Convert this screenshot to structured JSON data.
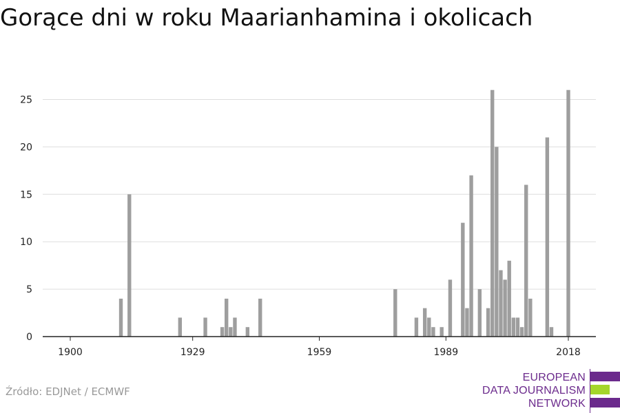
{
  "title": "Gorące dni w roku Maarianhamina i okolicach",
  "source": "Źródło: EDJNet / ECMWF",
  "logo": {
    "lines": [
      "EUROPEAN",
      "DATA JOURNALISM",
      "NETWORK"
    ],
    "colors": [
      "#6b2a8c",
      "#a4d62b",
      "#6b2a8c"
    ]
  },
  "chart_data": {
    "type": "bar",
    "title": "Gorące dni w roku Maarianhamina i okolicach",
    "xlabel": "",
    "ylabel": "",
    "xlim": [
      1894,
      2024
    ],
    "ylim": [
      0,
      26
    ],
    "x_ticks": [
      1900,
      1929,
      1959,
      1989,
      2018
    ],
    "y_ticks": [
      0,
      5,
      10,
      15,
      20,
      25
    ],
    "grid": "horizontal",
    "bar_color": "#9e9e9e",
    "x": [
      1912,
      1914,
      1926,
      1932,
      1936,
      1937,
      1938,
      1939,
      1942,
      1945,
      1977,
      1982,
      1984,
      1985,
      1986,
      1988,
      1990,
      1993,
      1994,
      1995,
      1997,
      1999,
      2000,
      2001,
      2002,
      2003,
      2004,
      2005,
      2006,
      2007,
      2008,
      2009,
      2013,
      2014,
      2018
    ],
    "values": [
      4,
      15,
      2,
      2,
      1,
      4,
      1,
      2,
      1,
      4,
      5,
      2,
      3,
      2,
      1,
      1,
      6,
      12,
      3,
      17,
      5,
      3,
      26,
      20,
      7,
      6,
      8,
      2,
      2,
      1,
      16,
      4,
      21,
      1,
      26
    ]
  }
}
